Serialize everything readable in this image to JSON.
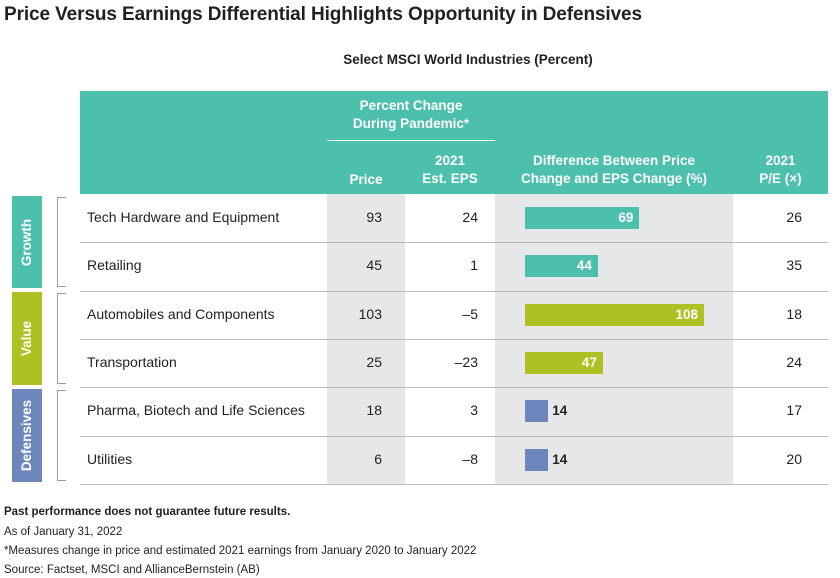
{
  "title": "Price Versus Earnings Differential Highlights Opportunity in Defensives",
  "subtitle": "Select MSCI World Industries (Percent)",
  "headers": {
    "group_line1": "Percent Change",
    "group_line2": "During Pandemic*",
    "price": "Price",
    "eps_line1": "2021",
    "eps_line2": "Est. EPS",
    "diff_line1": "Difference Between Price",
    "diff_line2": "Change and EPS Change (%)",
    "pe_line1": "2021",
    "pe_line2": "P/E (×)"
  },
  "categories": [
    {
      "name": "Growth",
      "color": "#4dbfad"
    },
    {
      "name": "Value",
      "color": "#aec122"
    },
    {
      "name": "Defensives",
      "color": "#6d87bd"
    }
  ],
  "chart_data": {
    "type": "table",
    "columns": [
      "Industry",
      "Price",
      "2021 Est. EPS",
      "Difference Between Price Change and EPS Change (%)",
      "2021 P/E (×)"
    ],
    "rows": [
      {
        "group": "Growth",
        "industry": "Tech Hardware and Equipment",
        "price": "93",
        "eps": "24",
        "diff": 69,
        "diff_label": "69",
        "pe": "26"
      },
      {
        "group": "Growth",
        "industry": "Retailing",
        "price": "45",
        "eps": "1",
        "diff": 44,
        "diff_label": "44",
        "pe": "35"
      },
      {
        "group": "Value",
        "industry": "Automobiles and Components",
        "price": "103",
        "eps": "–5",
        "diff": 108,
        "diff_label": "108",
        "pe": "18"
      },
      {
        "group": "Value",
        "industry": "Transportation",
        "price": "25",
        "eps": "–23",
        "diff": 47,
        "diff_label": "47",
        "pe": "24"
      },
      {
        "group": "Defensives",
        "industry": "Pharma, Biotech and Life Sciences",
        "price": "18",
        "eps": "3",
        "diff": 14,
        "diff_label": "14",
        "pe": "17"
      },
      {
        "group": "Defensives",
        "industry": "Utilities",
        "price": "6",
        "eps": "–8",
        "diff": 14,
        "diff_label": "14",
        "pe": "20"
      }
    ],
    "bar_range": [
      0,
      108
    ]
  },
  "footnotes": {
    "disclaimer": "Past performance does not guarantee future results.",
    "asof": "As of January 31, 2022",
    "measure": "*Measures change in price and estimated 2021 earnings from January 2020 to January 2022",
    "source": "Source: Factset, MSCI and AllianceBernstein (AB)"
  }
}
